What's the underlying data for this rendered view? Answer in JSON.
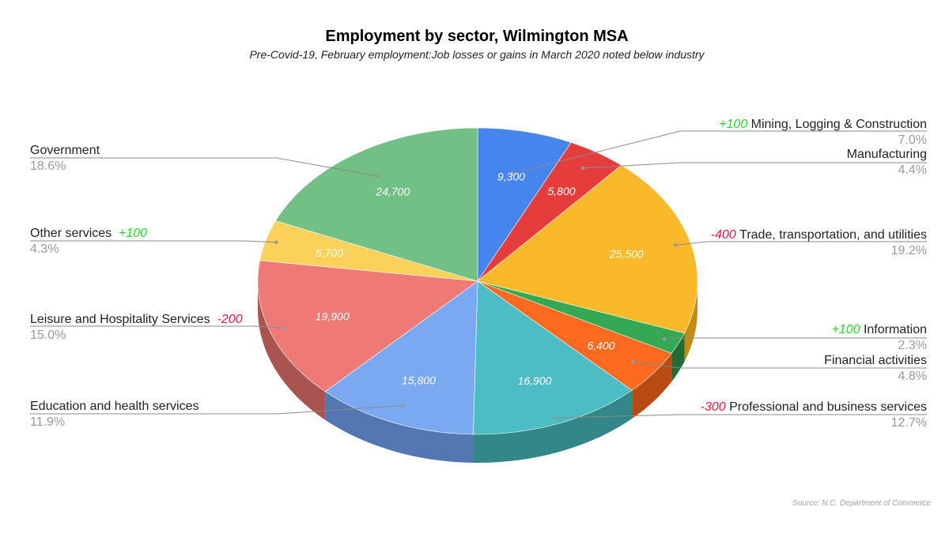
{
  "chart_data": {
    "type": "pie",
    "title": "Employment by sector, Wilmington MSA",
    "subtitle": "Pre-Covid-19, February employment:Job losses or gains in March 2020 noted below industry",
    "source": "Source: N.C. Department of Commerce",
    "slices": [
      {
        "label": "Mining, Logging & Construction",
        "value": 9300,
        "value_label": "9,300",
        "percent": "7.0%",
        "change": "+100",
        "color": "#4684ee",
        "side_color": "#3565b5"
      },
      {
        "label": "Manufacturing",
        "value": 5800,
        "value_label": "5,800",
        "percent": "4.4%",
        "change": "",
        "color": "#e53c3c",
        "side_color": "#a82a2a"
      },
      {
        "label": "Trade, transportation, and utilities",
        "value": 25500,
        "value_label": "25,500",
        "percent": "19.2%",
        "change": "-400",
        "color": "#f9b92a",
        "side_color": "#c48b14"
      },
      {
        "label": "Information",
        "value": 3050,
        "value_label": "",
        "percent": "2.3%",
        "change": "+100",
        "color": "#35a853",
        "side_color": "#226b35"
      },
      {
        "label": "Financial activities",
        "value": 6400,
        "value_label": "6,400",
        "percent": "4.8%",
        "change": "",
        "color": "#fb6a1f",
        "side_color": "#b84a12"
      },
      {
        "label": "Professional and business services",
        "value": 16900,
        "value_label": "16,900",
        "percent": "12.7%",
        "change": "-300",
        "color": "#4bbdc3",
        "side_color": "#338789"
      },
      {
        "label": "Education and health services",
        "value": 15800,
        "value_label": "15,800",
        "percent": "11.9%",
        "change": "",
        "color": "#7aa9f2",
        "side_color": "#5377b3"
      },
      {
        "label": "Leisure and Hospitality Services",
        "value": 19900,
        "value_label": "19,900",
        "percent": "15.0%",
        "change": "-200",
        "color": "#ee7975",
        "side_color": "#a95450"
      },
      {
        "label": "Other services",
        "value": 5700,
        "value_label": "5,700",
        "percent": "4.3%",
        "change": "+100",
        "color": "#fbd15a",
        "side_color": "#c29a30"
      },
      {
        "label": "Government",
        "value": 24700,
        "value_label": "24,700",
        "percent": "18.6%",
        "change": "",
        "color": "#73c087",
        "side_color": "#4f8c5f"
      }
    ],
    "change_colors": {
      "positive": "#22dd22",
      "negative": "#e8143c"
    },
    "style": "3d-tilted"
  }
}
